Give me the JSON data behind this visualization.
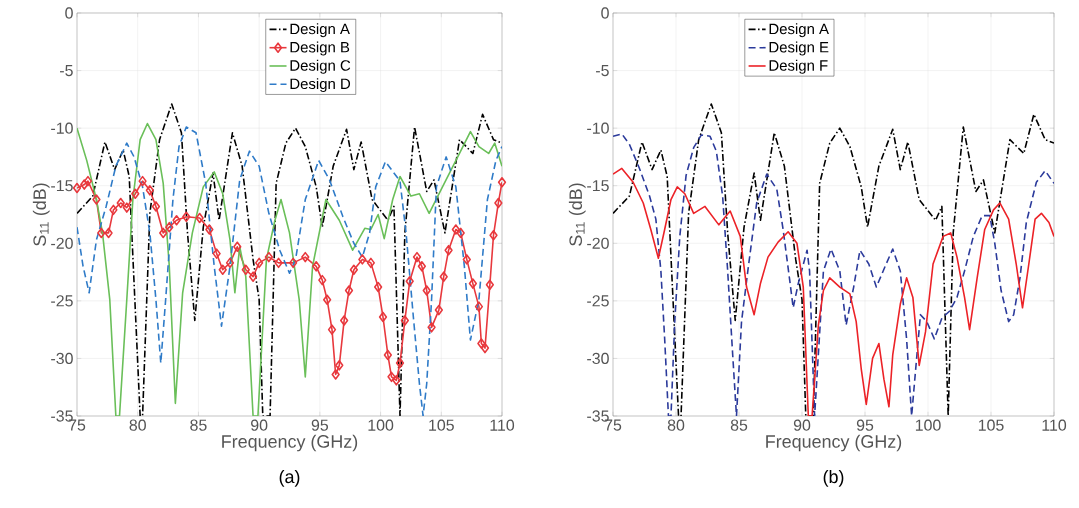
{
  "chart_data": [
    {
      "type": "line",
      "title": "(a)",
      "xlabel": "Frequency (GHz)",
      "ylabel": "S$_{11}$ (dB)",
      "xlim": [
        75,
        110
      ],
      "ylim": [
        -35,
        0
      ],
      "xticks": [
        75,
        80,
        85,
        90,
        95,
        100,
        105,
        110
      ],
      "yticks": [
        -35,
        -30,
        -25,
        -20,
        -15,
        -10,
        -5,
        0
      ],
      "grid": true,
      "legend": "top",
      "series": [
        {
          "name": "Design A",
          "color": "#000000",
          "line_style": "dashdot",
          "marker": "none",
          "x": [
            75,
            76.3,
            77.3,
            78.1,
            78.8,
            79.3,
            80.2,
            80.4,
            81.0,
            81.8,
            82.8,
            83.6,
            84.1,
            84.7,
            85.4,
            86.2,
            86.7,
            87.8,
            88.6,
            89.5,
            90.0,
            90.3,
            90.9,
            91.4,
            92.2,
            93.0,
            93.8,
            94.7,
            95.2,
            96.1,
            97.2,
            97.8,
            98.4,
            99.3,
            100.6,
            101.1,
            101.6,
            102.0,
            102.8,
            103.8,
            104.4,
            105.3,
            106.5,
            107.6,
            108.4,
            109.3,
            110
          ],
          "values": [
            -17.4,
            -15.9,
            -11.2,
            -13.6,
            -11.9,
            -14.2,
            -35,
            -35,
            -17.4,
            -11,
            -7.9,
            -10.4,
            -19.1,
            -26.7,
            -18.6,
            -13.9,
            -18,
            -10.4,
            -13.3,
            -21.4,
            -24.9,
            -35,
            -35,
            -14.8,
            -11.3,
            -10,
            -11.6,
            -15.1,
            -18.6,
            -13.3,
            -10.1,
            -13.6,
            -11.2,
            -16.2,
            -18,
            -16.8,
            -35,
            -19.1,
            -9.9,
            -15.5,
            -14.5,
            -19.1,
            -11,
            -12.2,
            -8.8,
            -11,
            -11.3
          ]
        },
        {
          "name": "Design B",
          "color": "#E8383D",
          "line_style": "solid",
          "marker": "diamond",
          "x": [
            75,
            75.6,
            75.9,
            76.6,
            77.0,
            77.6,
            78.0,
            78.6,
            79.1,
            79.8,
            80.4,
            81.0,
            81.5,
            82.1,
            82.6,
            83.2,
            84.0,
            85.1,
            85.9,
            86.5,
            87.0,
            87.6,
            88.2,
            88.9,
            89.5,
            90.0,
            90.8,
            91.6,
            92.8,
            93.8,
            94.7,
            95.2,
            95.6,
            96.0,
            96.3,
            96.6,
            97.0,
            97.4,
            97.8,
            98.5,
            99.2,
            99.8,
            100.2,
            100.6,
            100.9,
            101.3,
            101.6,
            102.0,
            102.4,
            103.0,
            103.4,
            103.8,
            104.2,
            104.8,
            105.2,
            105.6,
            106.2,
            106.6,
            107.1,
            107.6,
            108.1,
            108.3,
            108.6,
            109.0,
            109.3,
            109.7,
            110
          ],
          "values": [
            -15.2,
            -14.9,
            -14.6,
            -16.2,
            -19.1,
            -19.1,
            -17.1,
            -16.5,
            -16.9,
            -15.7,
            -14.6,
            -15.4,
            -16.8,
            -19.1,
            -18.6,
            -18,
            -17.7,
            -17.8,
            -18.8,
            -20.9,
            -22.3,
            -21.7,
            -20.3,
            -22.3,
            -22.9,
            -21.7,
            -21.2,
            -21.7,
            -21.7,
            -21.2,
            -22,
            -23.2,
            -24.9,
            -27.5,
            -31.4,
            -30.6,
            -26.7,
            -24.1,
            -22.3,
            -21.4,
            -21.7,
            -23.8,
            -26.4,
            -29.7,
            -31.6,
            -31.9,
            -30.4,
            -26.7,
            -23.3,
            -21.2,
            -22,
            -24.1,
            -27.3,
            -25.8,
            -22.9,
            -20.6,
            -18.8,
            -19.1,
            -21.4,
            -23.5,
            -25.5,
            -28.7,
            -29.1,
            -23.6,
            -19.3,
            -16.5,
            -14.7
          ]
        },
        {
          "name": "Design C",
          "color": "#6ABF59",
          "line_style": "solid",
          "marker": "none",
          "x": [
            75,
            75.8,
            76.6,
            77.1,
            77.7,
            78.2,
            78.5,
            79.1,
            79.6,
            80.2,
            80.8,
            81.5,
            82.1,
            82.6,
            83.1,
            83.7,
            84.5,
            85.4,
            86.3,
            87.0,
            87.6,
            88.0,
            88.4,
            88.9,
            89.5,
            89.9,
            90.6,
            91.3,
            91.8,
            92.5,
            93.3,
            93.8,
            94.4,
            95.5,
            96.6,
            97.7,
            98.7,
            99.2,
            99.8,
            100.3,
            101.0,
            101.6,
            102.5,
            103.2,
            104.0,
            105.1,
            106.5,
            107.4,
            108.1,
            108.9,
            109.4,
            110
          ],
          "values": [
            -10,
            -12.8,
            -16.2,
            -19.1,
            -24.9,
            -35,
            -35,
            -24.9,
            -16.2,
            -11,
            -9.6,
            -11,
            -14.8,
            -22,
            -33.9,
            -24.3,
            -19.1,
            -15.1,
            -13.8,
            -15.7,
            -19.7,
            -24.3,
            -20.3,
            -22.9,
            -35,
            -35,
            -21.4,
            -18,
            -16.2,
            -19.1,
            -24.9,
            -31.6,
            -22,
            -16.2,
            -18,
            -20.6,
            -18.7,
            -18.8,
            -17.5,
            -19.6,
            -16.2,
            -14.2,
            -15.9,
            -15.7,
            -17.4,
            -15.1,
            -12.2,
            -10.3,
            -11.6,
            -12.2,
            -11.3,
            -13.3
          ]
        },
        {
          "name": "Design D",
          "color": "#2F7BC8",
          "line_style": "dashed",
          "marker": "none",
          "x": [
            75,
            75.5,
            76.0,
            76.6,
            77.4,
            78.2,
            79.1,
            79.7,
            80.4,
            81.0,
            81.5,
            81.9,
            82.3,
            82.9,
            83.4,
            84.0,
            84.8,
            85.6,
            86.3,
            86.9,
            87.6,
            88.4,
            89.2,
            90.0,
            90.8,
            91.7,
            92.5,
            93.0,
            93.8,
            94.9,
            95.8,
            96.9,
            97.8,
            98.5,
            99.1,
            99.6,
            100.4,
            101.1,
            101.6,
            102.1,
            102.7,
            103.2,
            103.5,
            103.8,
            104.2,
            104.6,
            105.4,
            106.2,
            106.9,
            107.4,
            108.1,
            108.8,
            109.5,
            110
          ],
          "values": [
            -18.6,
            -22,
            -24.3,
            -19.7,
            -16.8,
            -13.3,
            -11.3,
            -12.5,
            -15.1,
            -19.1,
            -24.9,
            -30.4,
            -24.9,
            -16.2,
            -11.6,
            -9.9,
            -10.4,
            -14.8,
            -22,
            -27.2,
            -22,
            -14.5,
            -12,
            -13.3,
            -17.4,
            -20.6,
            -22.6,
            -21.4,
            -16.2,
            -12.8,
            -14.5,
            -17.7,
            -20,
            -21.2,
            -19.1,
            -15.1,
            -12.9,
            -13.9,
            -14.6,
            -19.1,
            -26.4,
            -32.2,
            -35,
            -32.2,
            -24.9,
            -15.1,
            -12.5,
            -15.1,
            -22,
            -28.4,
            -24.9,
            -16.2,
            -12.8,
            -11.6
          ]
        }
      ]
    },
    {
      "type": "line",
      "title": "(b)",
      "xlabel": "Frequency (GHz)",
      "ylabel": "S$_{11}$ (dB)",
      "xlim": [
        75,
        110
      ],
      "ylim": [
        -35,
        0
      ],
      "xticks": [
        75,
        80,
        85,
        90,
        95,
        100,
        105,
        110
      ],
      "yticks": [
        -35,
        -30,
        -25,
        -20,
        -15,
        -10,
        -5,
        0
      ],
      "grid": true,
      "legend": "top",
      "series": [
        {
          "name": "Design A",
          "color": "#000000",
          "line_style": "dashdot",
          "marker": "none",
          "x": [
            75,
            76.3,
            77.3,
            78.1,
            78.8,
            79.3,
            80.2,
            80.4,
            81.0,
            81.8,
            82.8,
            83.6,
            84.1,
            84.7,
            85.4,
            86.2,
            86.7,
            87.8,
            88.6,
            89.5,
            90.0,
            90.3,
            90.9,
            91.4,
            92.2,
            93.0,
            93.8,
            94.7,
            95.2,
            96.1,
            97.2,
            97.8,
            98.4,
            99.3,
            100.6,
            101.1,
            101.6,
            102.0,
            102.8,
            103.8,
            104.4,
            105.3,
            106.5,
            107.6,
            108.4,
            109.3,
            110
          ],
          "values": [
            -17.4,
            -15.9,
            -11.2,
            -13.6,
            -11.9,
            -14.2,
            -35,
            -35,
            -17.4,
            -11,
            -7.9,
            -10.4,
            -19.1,
            -26.7,
            -18.6,
            -13.9,
            -18,
            -10.4,
            -13.3,
            -21.4,
            -24.9,
            -35,
            -35,
            -14.8,
            -11.3,
            -10,
            -11.6,
            -15.1,
            -18.6,
            -13.3,
            -10.1,
            -13.6,
            -11.2,
            -16.2,
            -18,
            -16.8,
            -35,
            -19.1,
            -9.9,
            -15.5,
            -14.5,
            -19.1,
            -11,
            -12.2,
            -8.8,
            -11,
            -11.3
          ]
        },
        {
          "name": "Design E",
          "color": "#2B3A9B",
          "line_style": "dashed",
          "marker": "none",
          "x": [
            75,
            75.7,
            76.3,
            77.1,
            77.9,
            78.4,
            78.8,
            79.1,
            79.4,
            79.6,
            79.9,
            80.3,
            80.8,
            81.4,
            82.0,
            82.7,
            83.2,
            83.7,
            84.1,
            84.5,
            84.8,
            85.2,
            85.7,
            86.4,
            87.2,
            88.0,
            88.5,
            89.0,
            89.3,
            89.7,
            90.4,
            90.6,
            91.0,
            91.7,
            92.3,
            93.0,
            93.5,
            94.1,
            94.6,
            95.3,
            95.9,
            96.6,
            97.2,
            97.8,
            98.3,
            98.7,
            99.0,
            99.4,
            99.9,
            100.5,
            101.1,
            101.7,
            102.3,
            102.9,
            103.6,
            104.3,
            104.9,
            105.3,
            105.8,
            106.4,
            106.8,
            107.3,
            107.8,
            108.6,
            109.3,
            110
          ],
          "values": [
            -10.7,
            -10.5,
            -11.4,
            -13.5,
            -15.9,
            -17.9,
            -22.4,
            -28.3,
            -35,
            -35,
            -26.8,
            -19.4,
            -14.1,
            -11.7,
            -10.6,
            -10.7,
            -12,
            -15.9,
            -22.4,
            -29.7,
            -35,
            -26.8,
            -22.4,
            -16.5,
            -14,
            -15.3,
            -18.8,
            -23,
            -25.6,
            -23.5,
            -20.6,
            -22.4,
            -35,
            -22.4,
            -20.5,
            -22.4,
            -27.1,
            -23.8,
            -20.6,
            -21.8,
            -23.8,
            -22,
            -20.5,
            -22.4,
            -28.3,
            -35,
            -31.2,
            -26.2,
            -26.8,
            -28.3,
            -26.5,
            -25.9,
            -24.7,
            -22.4,
            -19.4,
            -17.6,
            -17.6,
            -20,
            -24.1,
            -26.8,
            -26.2,
            -23,
            -18.2,
            -14.7,
            -13.7,
            -14.8
          ]
        },
        {
          "name": "Design F",
          "color": "#EC2227",
          "line_style": "solid",
          "marker": "none",
          "x": [
            75,
            75.7,
            76.6,
            77.4,
            78.0,
            78.6,
            79.1,
            79.6,
            80.1,
            80.7,
            81.4,
            82.3,
            83.4,
            84.3,
            85.1,
            85.6,
            86.2,
            86.7,
            87.3,
            88.1,
            88.9,
            89.6,
            90.1,
            90.5,
            90.8,
            91.3,
            91.7,
            92.2,
            93.0,
            93.8,
            94.3,
            94.7,
            95.1,
            95.6,
            96.1,
            96.5,
            96.9,
            97.2,
            97.8,
            98.3,
            98.8,
            99.3,
            99.8,
            100.4,
            101.2,
            101.8,
            102.3,
            102.9,
            103.3,
            103.9,
            104.5,
            105.2,
            105.7,
            106.4,
            107.0,
            107.5,
            108.0,
            108.5,
            109.0,
            109.6,
            110
          ],
          "values": [
            -14,
            -13.5,
            -14.7,
            -16.5,
            -18.8,
            -21.3,
            -18.8,
            -16.2,
            -15.1,
            -15.7,
            -17.4,
            -16.8,
            -18.4,
            -17.2,
            -19.4,
            -23.8,
            -26.2,
            -23.5,
            -21.2,
            -19.9,
            -19,
            -20,
            -23.8,
            -35,
            -35,
            -27.1,
            -24.1,
            -23,
            -23.8,
            -24.4,
            -26.8,
            -30.9,
            -34,
            -30,
            -28.7,
            -31.8,
            -34.2,
            -29.7,
            -25.3,
            -23,
            -24.7,
            -30.6,
            -27.7,
            -21.8,
            -19.4,
            -19.1,
            -21.2,
            -24.7,
            -27.5,
            -23,
            -18.8,
            -17.1,
            -16.5,
            -17.9,
            -21.8,
            -25.6,
            -21.8,
            -17.9,
            -17.4,
            -18.2,
            -19.4
          ]
        }
      ]
    }
  ]
}
